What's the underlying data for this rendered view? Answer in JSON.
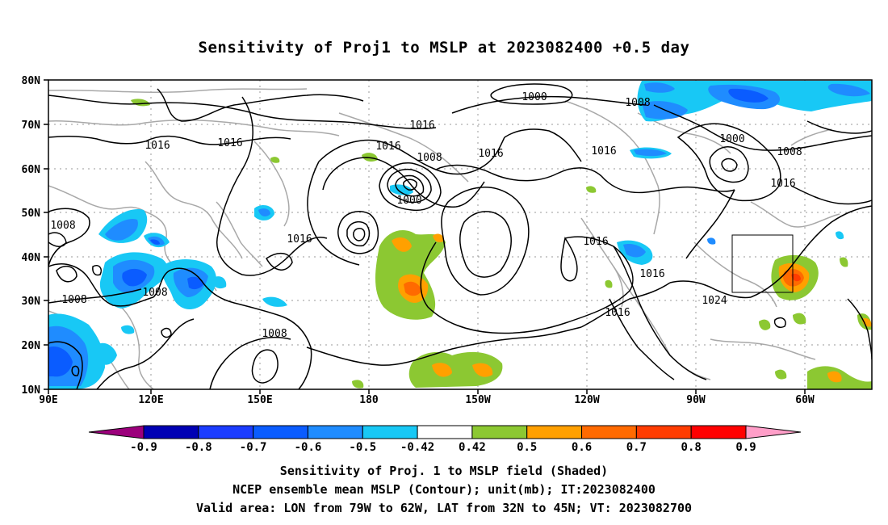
{
  "title": "Sensitivity of Proj1 to MSLP at 2023082400 +0.5 day",
  "lat_labels": [
    "80N",
    "70N",
    "60N",
    "50N",
    "40N",
    "30N",
    "20N",
    "10N"
  ],
  "lon_labels": [
    "90E",
    "120E",
    "150E",
    "180",
    "150W",
    "120W",
    "90W",
    "60W"
  ],
  "colorbar": {
    "labels": [
      "-0.9",
      "-0.8",
      "-0.7",
      "-0.6",
      "-0.5",
      "-0.42",
      "0.42",
      "0.5",
      "0.6",
      "0.7",
      "0.8",
      "0.9"
    ],
    "colors": [
      "#9c007c",
      "#0000b4",
      "#1b3cff",
      "#0a5cff",
      "#1f8cff",
      "#18c8f5",
      "#ffffff",
      "#8cc832",
      "#ffa000",
      "#ff6a00",
      "#ff3c00",
      "#ff0000",
      "#ff9ec8"
    ]
  },
  "contour_labels": [
    "1000",
    "1000",
    "1000",
    "1008",
    "1008",
    "1008",
    "1008",
    "1008",
    "1008",
    "1008",
    "1016",
    "1016",
    "1016",
    "1016",
    "1016",
    "1016",
    "1016",
    "1016",
    "1016",
    "1016",
    "1016",
    "1024"
  ],
  "footer": {
    "line1": "Sensitivity of Proj. 1 to MSLP field (Shaded)",
    "line2": "NCEP ensemble mean MSLP (Contour); unit(mb); IT:2023082400",
    "line3": "Valid area: LON from 79W to 62W, LAT from 32N to 45N; VT: 2023082700"
  }
}
